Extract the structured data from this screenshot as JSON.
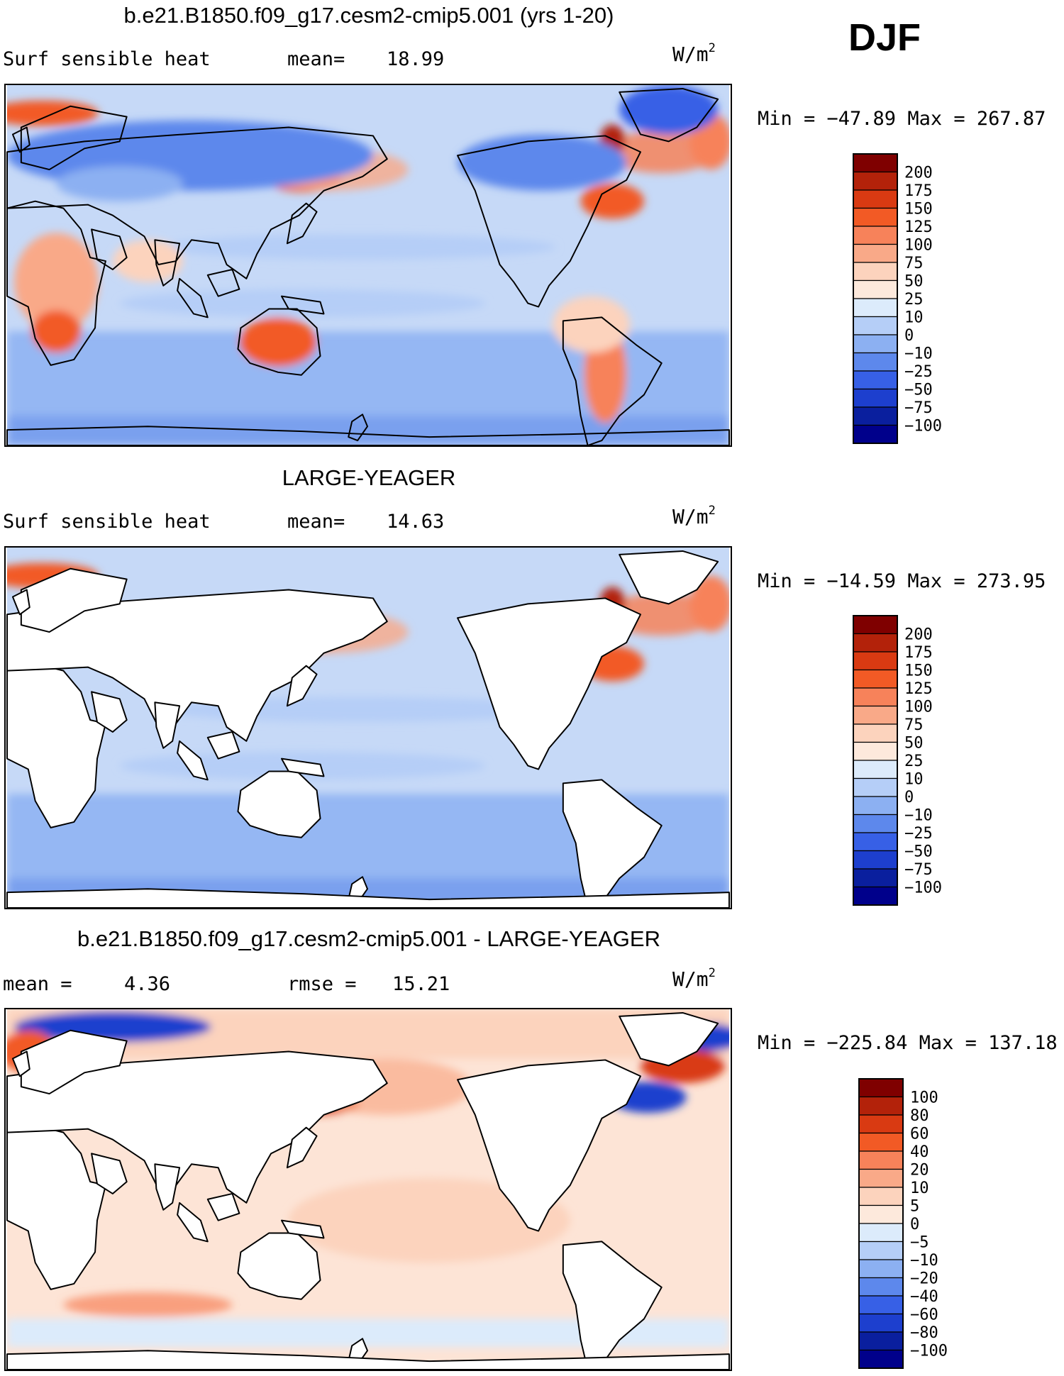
{
  "season": "DJF",
  "panels": [
    {
      "title": "b.e21.B1850.f09_g17.cesm2-cmip5.001 (yrs 1-20)",
      "variable": "Surf sensible heat",
      "stat1_label": "mean=",
      "stat1_value": "18.99",
      "units_base": "W/m",
      "units_exp": "2",
      "minmax": "Min = −47.89 Max = 267.87",
      "land_white": false,
      "colorbar_levels": [
        "200",
        "175",
        "150",
        "125",
        "100",
        "75",
        "50",
        "25",
        "10",
        "0",
        "−10",
        "−25",
        "−50",
        "−75",
        "−100"
      ]
    },
    {
      "title": "LARGE-YEAGER",
      "variable": "Surf sensible heat",
      "stat1_label": "mean=",
      "stat1_value": "14.63",
      "units_base": "W/m",
      "units_exp": "2",
      "minmax": "Min = −14.59 Max = 273.95",
      "land_white": true,
      "colorbar_levels": [
        "200",
        "175",
        "150",
        "125",
        "100",
        "75",
        "50",
        "25",
        "10",
        "0",
        "−10",
        "−25",
        "−50",
        "−75",
        "−100"
      ]
    },
    {
      "title": "b.e21.B1850.f09_g17.cesm2-cmip5.001 - LARGE-YEAGER",
      "stat1_label": "mean =",
      "stat1_value": "4.36",
      "stat2_label": "rmse =",
      "stat2_value": "15.21",
      "units_base": "W/m",
      "units_exp": "2",
      "minmax": "Min = −225.84 Max = 137.18",
      "land_white": true,
      "colorbar_levels": [
        "100",
        "80",
        "60",
        "40",
        "20",
        "10",
        "5",
        "0",
        "−5",
        "−10",
        "−20",
        "−40",
        "−60",
        "−80",
        "−100"
      ]
    }
  ],
  "colors": {
    "palette": [
      "#7f0000",
      "#b3220a",
      "#d93a12",
      "#f25a25",
      "#f7825a",
      "#f9a988",
      "#fcd3bd",
      "#fde9dc",
      "#dcebfb",
      "#b5cef7",
      "#8cb0f2",
      "#5d88ec",
      "#3760e6",
      "#1d3fce",
      "#0a1f9e",
      "#00008b"
    ],
    "ocean_base": "#c6d9f7",
    "coast": "#000000"
  },
  "chart_data": [
    {
      "type": "heatmap",
      "title": "b.e21.B1850.f09_g17.cesm2-cmip5.001 (yrs 1-20)",
      "variable": "Surf sensible heat",
      "units": "W/m2",
      "mean": 18.99,
      "min": -47.89,
      "max": 267.87,
      "levels": [
        -100,
        -75,
        -50,
        -25,
        -10,
        0,
        10,
        25,
        50,
        75,
        100,
        125,
        150,
        175,
        200
      ]
    },
    {
      "type": "heatmap",
      "title": "LARGE-YEAGER",
      "variable": "Surf sensible heat",
      "units": "W/m2",
      "mean": 14.63,
      "min": -14.59,
      "max": 273.95,
      "levels": [
        -100,
        -75,
        -50,
        -25,
        -10,
        0,
        10,
        25,
        50,
        75,
        100,
        125,
        150,
        175,
        200
      ]
    },
    {
      "type": "heatmap",
      "title": "b.e21.B1850.f09_g17.cesm2-cmip5.001 - LARGE-YEAGER",
      "units": "W/m2",
      "mean": 4.36,
      "rmse": 15.21,
      "min": -225.84,
      "max": 137.18,
      "levels": [
        -100,
        -80,
        -60,
        -40,
        -20,
        -10,
        -5,
        0,
        5,
        10,
        20,
        40,
        60,
        80,
        100
      ]
    }
  ]
}
